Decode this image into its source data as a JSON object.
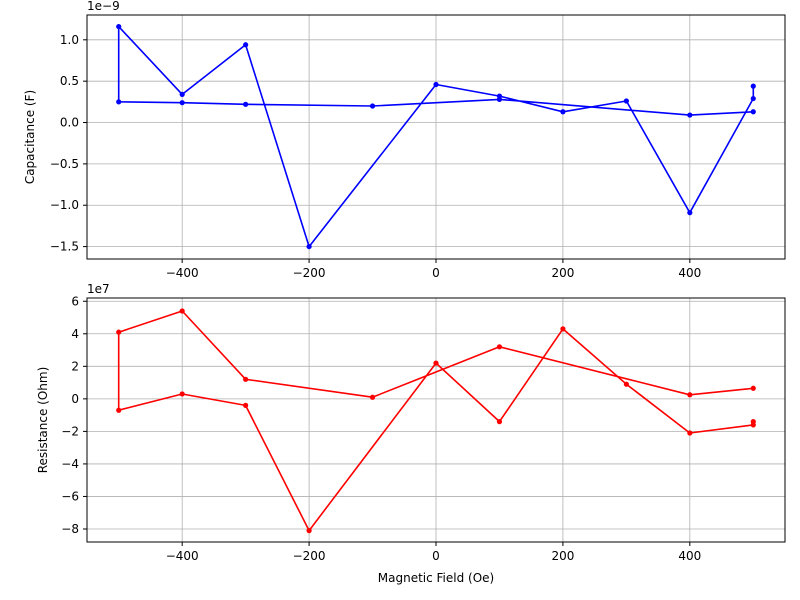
{
  "chart_data": [
    {
      "type": "line",
      "xlabel": "",
      "ylabel": "Capacitance (F)",
      "offset_text": "1e−9",
      "color": "#0000ff",
      "xlim": [
        -550,
        550
      ],
      "ylim": [
        -1.65,
        1.3
      ],
      "x_ticks": [
        -400,
        -200,
        0,
        200,
        400
      ],
      "x_tick_labels": [
        "−400",
        "−200",
        "0",
        "200",
        "400"
      ],
      "y_ticks": [
        -1.5,
        -1.0,
        -0.5,
        0.0,
        0.5,
        1.0
      ],
      "y_tick_labels": [
        "−1.5",
        "−1.0",
        "−0.5",
        "0.0",
        "0.5",
        "1.0"
      ],
      "grid": true,
      "series": [
        {
          "x": [
            500,
            500,
            400,
            300,
            200,
            100,
            0,
            -200,
            -300,
            -400,
            -500,
            -500,
            -400,
            -300,
            -100,
            100,
            400,
            500
          ],
          "y": [
            0.44,
            0.29,
            -1.09,
            0.26,
            0.13,
            0.32,
            0.46,
            -1.5,
            0.94,
            0.34,
            1.16,
            0.25,
            0.24,
            0.22,
            0.2,
            0.28,
            0.09,
            0.13
          ]
        }
      ]
    },
    {
      "type": "line",
      "xlabel": "Magnetic Field (Oe)",
      "ylabel": "Resistance (Ohm)",
      "offset_text": "1e7",
      "color": "#ff0000",
      "xlim": [
        -550,
        550
      ],
      "ylim": [
        -8.8,
        6.2
      ],
      "x_ticks": [
        -400,
        -200,
        0,
        200,
        400
      ],
      "x_tick_labels": [
        "−400",
        "−200",
        "0",
        "200",
        "400"
      ],
      "y_ticks": [
        -8,
        -6,
        -4,
        -2,
        0,
        2,
        4,
        6
      ],
      "y_tick_labels": [
        "−8",
        "−6",
        "−4",
        "−2",
        "0",
        "2",
        "4",
        "6"
      ],
      "grid": true,
      "series": [
        {
          "x": [
            500,
            500,
            400,
            300,
            200,
            100,
            0,
            -200,
            -300,
            -400,
            -500,
            -500,
            -400,
            -300,
            -100,
            100,
            400,
            500
          ],
          "y": [
            -1.4,
            -1.6,
            -2.1,
            0.9,
            4.3,
            -1.4,
            2.2,
            -8.1,
            -0.4,
            0.3,
            -0.7,
            4.1,
            5.4,
            1.2,
            0.1,
            3.2,
            0.25,
            0.65
          ]
        }
      ]
    }
  ]
}
